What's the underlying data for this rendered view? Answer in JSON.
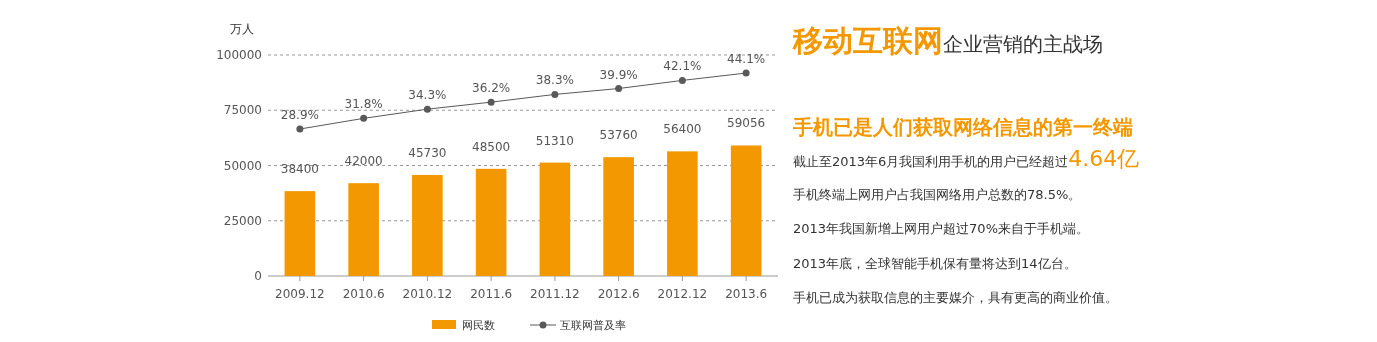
{
  "chart_data": {
    "type": "bar",
    "ylabel": "万人",
    "categories": [
      "2009.12",
      "2010.6",
      "2010.12",
      "2011.6",
      "2011.12",
      "2012.6",
      "2012.12",
      "2013.6"
    ],
    "series": [
      {
        "name": "网民数",
        "color": "#f39800",
        "values": [
          38400,
          42000,
          45730,
          48500,
          51310,
          53760,
          56400,
          59056
        ]
      },
      {
        "name": "互联网普及率",
        "type": "line",
        "axis": "y2",
        "color": "#595959",
        "values": [
          28.9,
          31.8,
          34.3,
          36.2,
          38.3,
          39.9,
          42.1,
          44.1
        ],
        "value_labels": [
          "28.9%",
          "31.8%",
          "34.3%",
          "36.2%",
          "38.3%",
          "39.9%",
          "42.1%",
          "44.1%"
        ]
      }
    ],
    "ylim": [
      0,
      100000
    ],
    "yticks": [
      0,
      25000,
      50000,
      75000,
      100000
    ],
    "y2lim": [
      -11,
      49
    ],
    "grid": "y",
    "legend": "bottom",
    "marker": "circle",
    "line_style": "solid",
    "data_labels": true,
    "annotations": [
      "移动互联网",
      "企业营销的主战场",
      "手机已是人们获取网络信息的第一终端",
      "截止至2013年6月我国利用手机的用户已经超过",
      "4.64亿",
      "手机终端上网用户占我国网络用户总数的78.5%。",
      "2013年我国新增上网用户超过70%来自于手机端。",
      "2013年底，全球智能手机保有量将达到14亿台。",
      "手机已成为获取信息的主要媒介，具有更高的商业价值。"
    ]
  }
}
